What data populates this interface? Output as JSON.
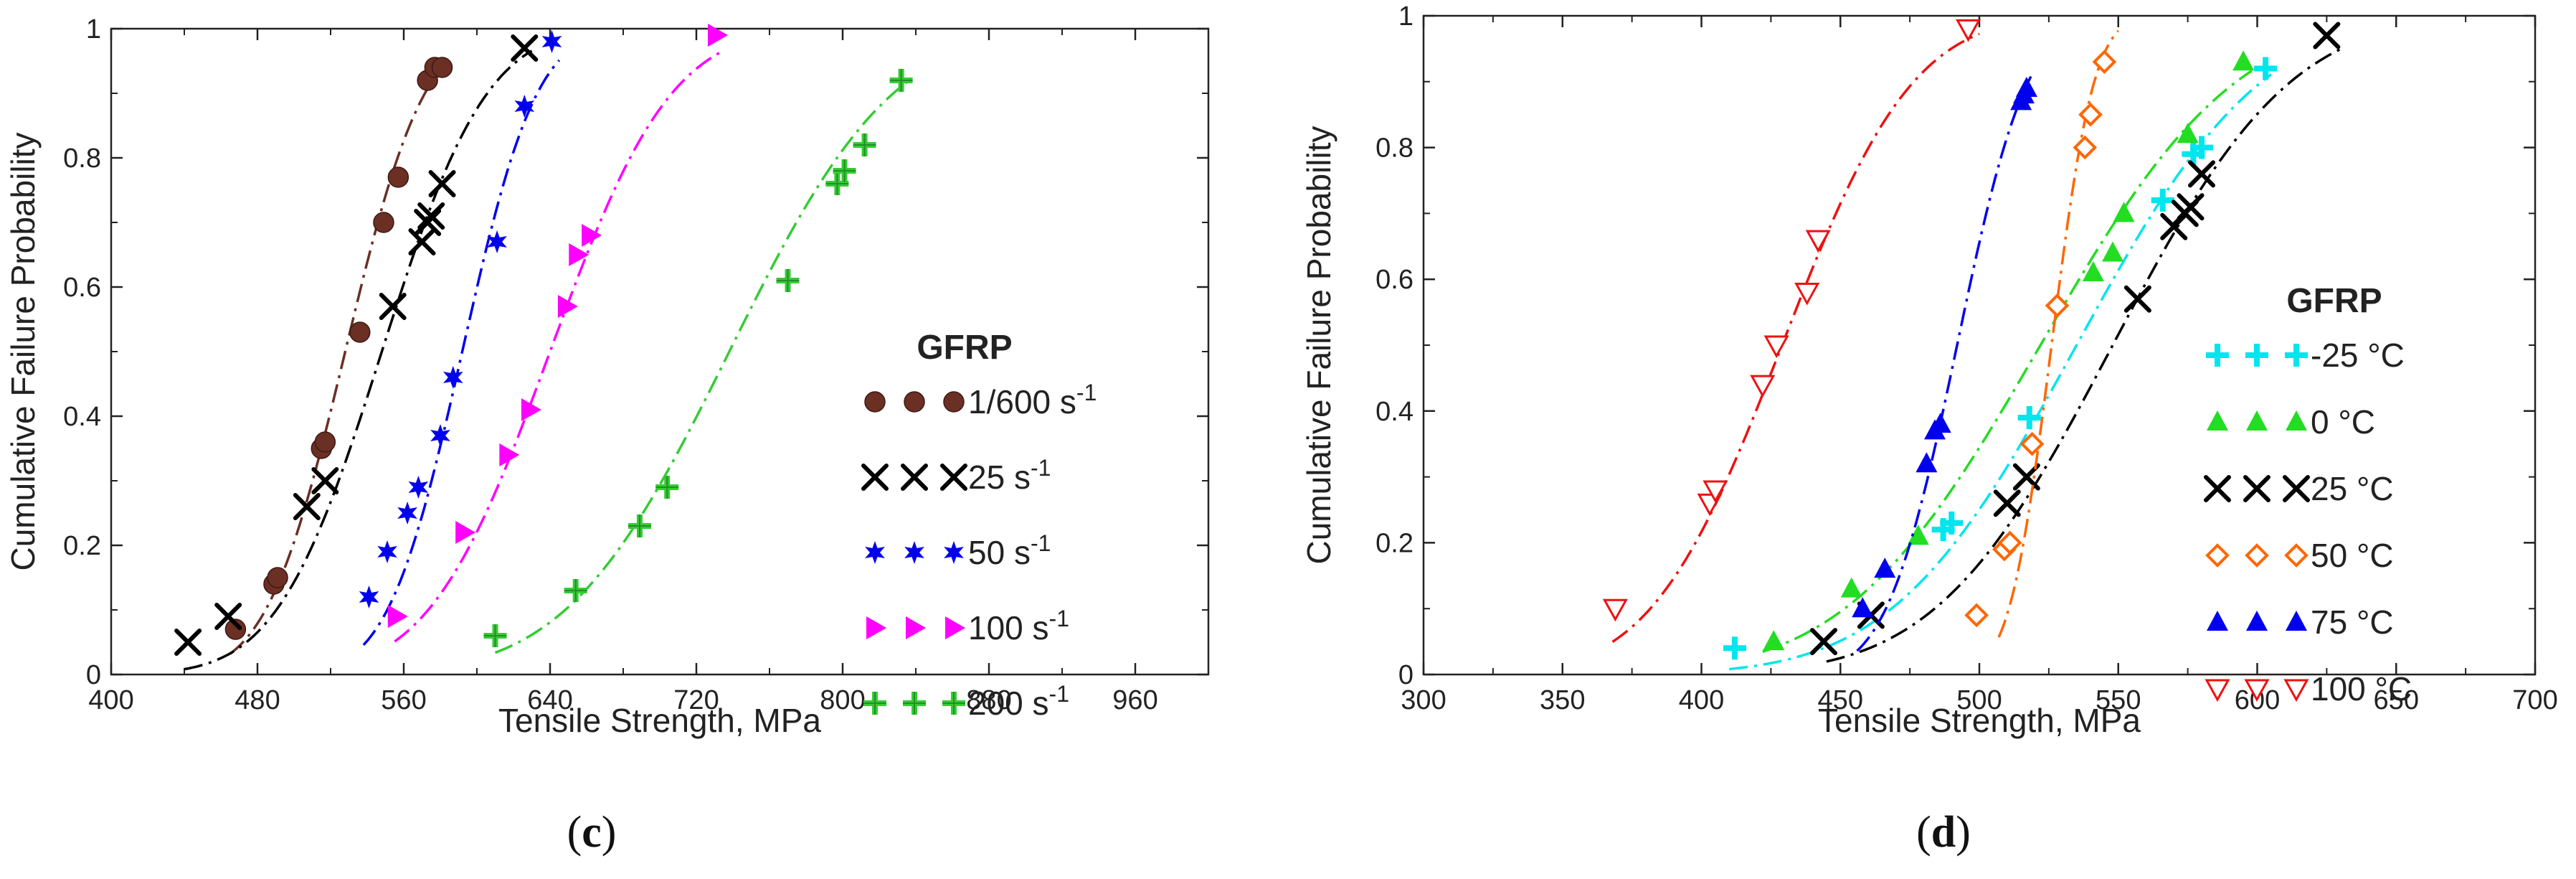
{
  "chart_data": [
    {
      "type": "scatter",
      "panel_label": "(c)",
      "panel_letter": "c",
      "xlabel": "Tensile Strength, MPa",
      "ylabel": "Cumulative Failure Probability",
      "xlim": [
        400,
        1000
      ],
      "ylim": [
        0,
        1
      ],
      "xticks": [
        400,
        480,
        560,
        640,
        720,
        800,
        880,
        960
      ],
      "yticks": [
        0,
        0.2,
        0.4,
        0.6,
        0.8,
        1
      ],
      "ytick_labels": [
        "0",
        "0.2",
        "0.4",
        "0.6",
        "0.8",
        "1"
      ],
      "legend_title": "GFRP",
      "legend_position": "right",
      "series": [
        {
          "name": "1/600",
          "unit": " s",
          "sup": "-1",
          "marker": "circle",
          "color": "#6b2f24",
          "x": [
            468,
            489,
            491,
            515,
            517,
            536,
            549,
            557,
            573,
            577,
            581
          ],
          "y": [
            0.07,
            0.14,
            0.15,
            0.35,
            0.36,
            0.53,
            0.7,
            0.77,
            0.92,
            0.94,
            0.94
          ],
          "fit": {
            "mu": 528,
            "sigma": 34,
            "from": 465,
            "to": 582
          }
        },
        {
          "name": "25",
          "unit": " s",
          "sup": "-1",
          "marker": "x",
          "color": "#000000",
          "x": [
            442,
            464,
            507,
            517,
            554,
            570,
            573,
            575,
            581,
            626
          ],
          "y": [
            0.05,
            0.09,
            0.26,
            0.3,
            0.57,
            0.67,
            0.7,
            0.71,
            0.76,
            0.97
          ],
          "fit": {
            "mu": 548,
            "sigma": 45,
            "from": 440,
            "to": 630
          }
        },
        {
          "name": "50",
          "unit": " s",
          "sup": "-1",
          "marker": "star",
          "color": "#0000ee",
          "x": [
            541,
            551,
            562,
            568,
            580,
            587,
            611,
            626,
            641
          ],
          "y": [
            0.12,
            0.19,
            0.25,
            0.29,
            0.37,
            0.46,
            0.67,
            0.88,
            0.98
          ],
          "fit": {
            "mu": 592,
            "sigma": 32,
            "from": 538,
            "to": 645
          }
        },
        {
          "name": "100",
          "unit": " s",
          "sup": "-1",
          "marker": "triangle-right",
          "color": "#ff00ff",
          "x": [
            556,
            593,
            617,
            629,
            649,
            655,
            662,
            731
          ],
          "y": [
            0.09,
            0.22,
            0.34,
            0.41,
            0.57,
            0.65,
            0.68,
            0.99
          ],
          "fit": {
            "mu": 640,
            "sigma": 52,
            "from": 555,
            "to": 735
          }
        },
        {
          "name": "200",
          "unit": " s",
          "sup": "-1",
          "marker": "plus",
          "color": "#33cc33",
          "x": [
            610,
            654,
            689,
            704,
            770,
            797,
            801,
            812,
            832
          ],
          "y": [
            0.06,
            0.13,
            0.23,
            0.29,
            0.61,
            0.76,
            0.78,
            0.82,
            0.92
          ],
          "fit": {
            "mu": 738,
            "sigma": 70,
            "from": 610,
            "to": 836
          }
        }
      ]
    },
    {
      "type": "scatter",
      "panel_label": "(d)",
      "panel_letter": "d",
      "xlabel": "Tensile Strength, MPa",
      "ylabel": "Cumulative Failure Probability",
      "xlim": [
        300,
        700
      ],
      "ylim": [
        0,
        1
      ],
      "xticks": [
        300,
        350,
        400,
        450,
        500,
        550,
        600,
        650,
        700
      ],
      "yticks": [
        0,
        0.2,
        0.4,
        0.6,
        0.8,
        1
      ],
      "ytick_labels": [
        "0",
        "0.2",
        "0.4",
        "0.6",
        "0.8",
        "1"
      ],
      "legend_title": "GFRP",
      "legend_position": "right",
      "series": [
        {
          "name": "-25",
          "unit": " °C",
          "sup": "",
          "marker": "plus",
          "color": "#00e5ee",
          "x": [
            412,
            487,
            490,
            518,
            566,
            577,
            580,
            603
          ],
          "y": [
            0.04,
            0.22,
            0.23,
            0.39,
            0.72,
            0.79,
            0.8,
            0.92
          ],
          "fit": {
            "mu": 535,
            "sigma": 52,
            "from": 410,
            "to": 605
          }
        },
        {
          "name": "0",
          "unit": " °C",
          "sup": "",
          "marker": "triangle",
          "color": "#22dd22",
          "x": [
            426,
            454,
            478,
            541,
            548,
            552,
            575,
            595
          ],
          "y": [
            0.05,
            0.13,
            0.21,
            0.61,
            0.64,
            0.7,
            0.82,
            0.93
          ],
          "fit": {
            "mu": 522,
            "sigma": 55,
            "from": 422,
            "to": 598
          }
        },
        {
          "name": "25",
          "unit": " °C",
          "sup": "",
          "marker": "x",
          "color": "#000000",
          "x": [
            444,
            461,
            510,
            517,
            557,
            570,
            574,
            576,
            580,
            625
          ],
          "y": [
            0.05,
            0.09,
            0.26,
            0.3,
            0.57,
            0.68,
            0.7,
            0.71,
            0.76,
            0.97
          ],
          "fit": {
            "mu": 548,
            "sigma": 50,
            "from": 445,
            "to": 630
          }
        },
        {
          "name": "50",
          "unit": " °C",
          "sup": "",
          "marker": "diamond",
          "color": "#ff6600",
          "x": [
            499,
            509,
            511,
            519,
            528,
            538,
            540,
            545
          ],
          "y": [
            0.09,
            0.19,
            0.2,
            0.35,
            0.56,
            0.8,
            0.85,
            0.93
          ],
          "fit": {
            "mu": 526,
            "sigma": 12,
            "from": 507,
            "to": 550
          }
        },
        {
          "name": "75",
          "unit": " °C",
          "sup": "",
          "marker": "triangle",
          "color": "#0000ee",
          "x": [
            458,
            466,
            481,
            484,
            486,
            515,
            516,
            517
          ],
          "y": [
            0.1,
            0.16,
            0.32,
            0.37,
            0.38,
            0.87,
            0.88,
            0.89
          ],
          "fit": {
            "mu": 492,
            "sigma": 20,
            "from": 456,
            "to": 519
          }
        },
        {
          "name": "100",
          "unit": " °C",
          "sup": "",
          "marker": "triangle-down",
          "color": "#ee1111",
          "x": [
            369,
            403,
            405,
            422,
            427,
            438,
            442,
            496
          ],
          "y": [
            0.1,
            0.26,
            0.28,
            0.44,
            0.5,
            0.58,
            0.66,
            0.98
          ],
          "fit": {
            "mu": 429,
            "sigma": 37,
            "from": 368,
            "to": 500
          }
        }
      ]
    }
  ]
}
